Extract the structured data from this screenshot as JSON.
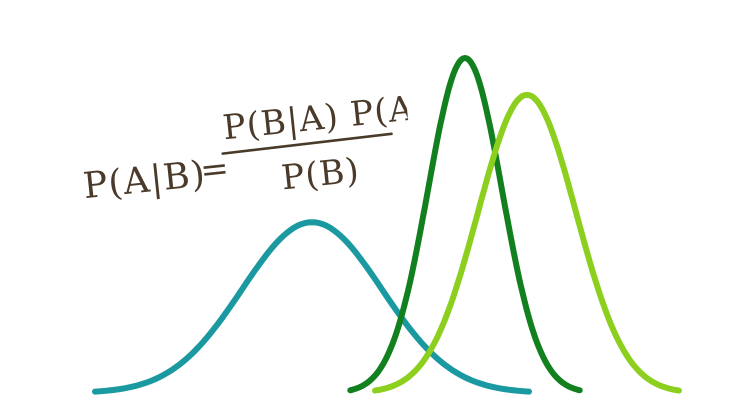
{
  "equation": {
    "lhs": "P(A|B)",
    "equals": "=",
    "numerator": "P(B|A) P(A)",
    "denominator": "P(B)"
  },
  "curves": [
    {
      "id": "prior",
      "color": "#1a9aa0",
      "mean": 312,
      "sd": 70,
      "peak": 0.51
    },
    {
      "id": "posterior",
      "color": "#12801e",
      "mean": 465,
      "sd": 37,
      "peak": 1.0
    },
    {
      "id": "likelihood",
      "color": "#8ccf1e",
      "mean": 527,
      "sd": 49,
      "peak": 0.89
    }
  ]
}
